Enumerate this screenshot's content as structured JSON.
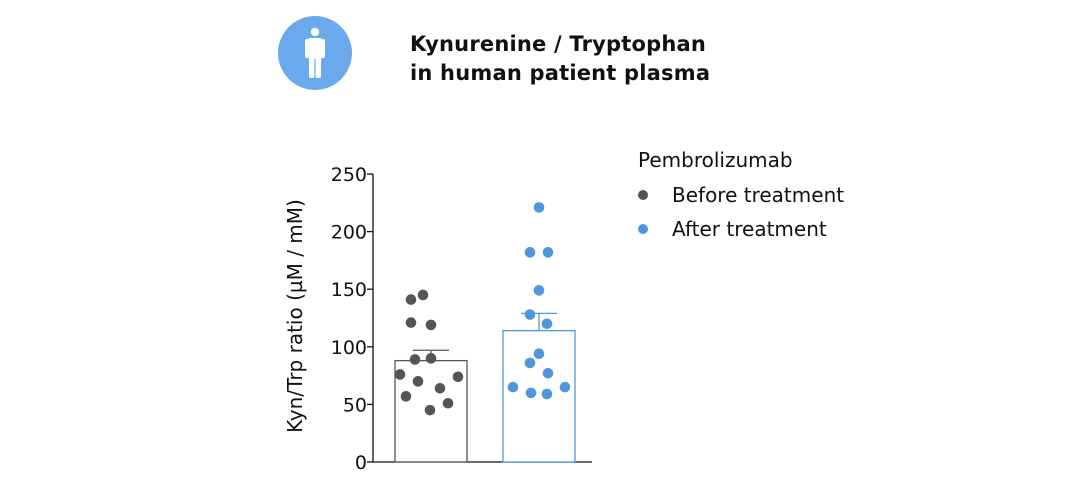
{
  "header": {
    "icon": "person-icon",
    "icon_bg": "#6aa9ec",
    "title_line1": "Kynurenine / Tryptophan",
    "title_line2": "in human patient plasma"
  },
  "legend": {
    "title": "Pembrolizumab",
    "items": [
      {
        "label": "Before treatment",
        "color": "#555555"
      },
      {
        "label": "After treatment",
        "color": "#4f97dc"
      }
    ]
  },
  "chart_data": {
    "type": "bar",
    "ylabel": "Kyn/Trp ratio (µM / mM)",
    "ylim": [
      0,
      250
    ],
    "yticks": [
      0,
      50,
      100,
      150,
      200,
      250
    ],
    "grid": false,
    "legend_position": "right",
    "series": [
      {
        "name": "Before treatment",
        "color": "#555555",
        "mean": 88,
        "sem": 9,
        "points": [
          145,
          141,
          121,
          119,
          90,
          89,
          76,
          74,
          70,
          64,
          57,
          51,
          45
        ]
      },
      {
        "name": "After treatment",
        "color": "#4f97dc",
        "mean": 114,
        "sem": 15,
        "points": [
          221,
          182,
          182,
          149,
          128,
          120,
          94,
          86,
          77,
          65,
          65,
          60,
          59
        ]
      }
    ]
  }
}
